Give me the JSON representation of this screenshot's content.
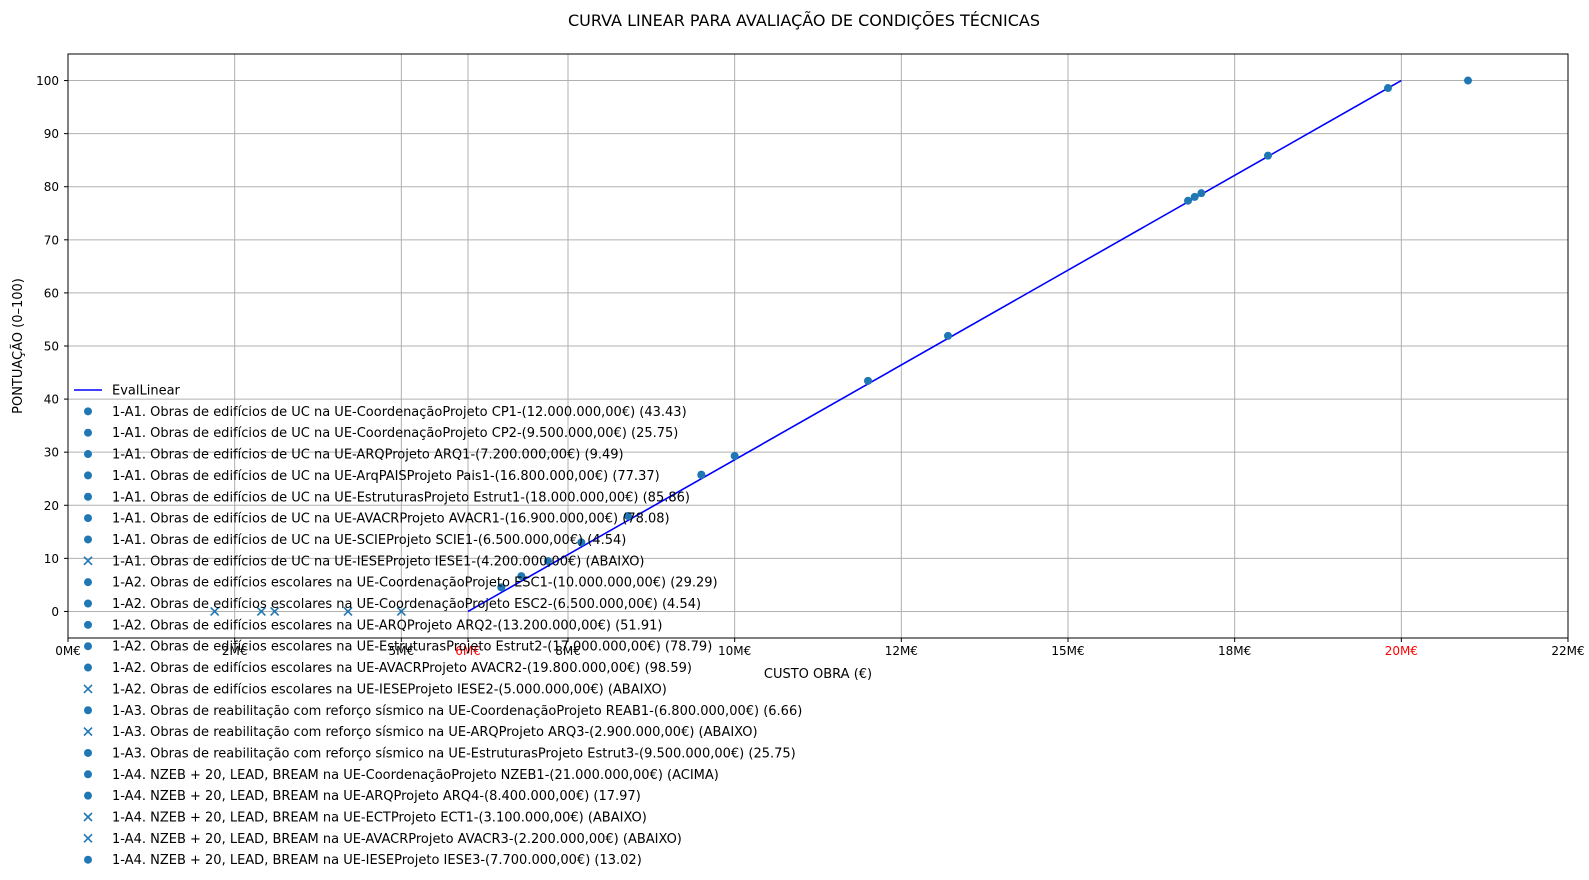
{
  "chart_data": {
    "type": "scatter",
    "title": "CURVA LINEAR PARA AVALIAÇÃO DE CONDIÇÕES TÉCNICAS",
    "xlabel": "CUSTO OBRA (€)",
    "ylabel": "PONTUAÇÃO (0–100)",
    "xlim": [
      0,
      22500000
    ],
    "ylim": [
      -5,
      105
    ],
    "x_ticks": [
      {
        "value": 0,
        "label": "0M€",
        "color": "#000000"
      },
      {
        "value": 2500000,
        "label": "2M€",
        "color": "#000000"
      },
      {
        "value": 5000000,
        "label": "5M€",
        "color": "#000000"
      },
      {
        "value": 6000000,
        "label": "6M€",
        "color": "#ff0000"
      },
      {
        "value": 7500000,
        "label": "8M€",
        "color": "#000000"
      },
      {
        "value": 10000000,
        "label": "10M€",
        "color": "#000000"
      },
      {
        "value": 12500000,
        "label": "12M€",
        "color": "#000000"
      },
      {
        "value": 15000000,
        "label": "15M€",
        "color": "#000000"
      },
      {
        "value": 17500000,
        "label": "18M€",
        "color": "#000000"
      },
      {
        "value": 20000000,
        "label": "20M€",
        "color": "#ff0000"
      },
      {
        "value": 22500000,
        "label": "22M€",
        "color": "#000000"
      }
    ],
    "y_ticks": [
      0,
      10,
      20,
      30,
      40,
      50,
      60,
      70,
      80,
      90,
      100
    ],
    "grid": true,
    "legend_position": "left",
    "line": {
      "name": "EvalLinear",
      "color": "#0000ff",
      "x": [
        6000000,
        20000000
      ],
      "y": [
        0,
        100
      ]
    },
    "marker_color": "#1f77b4",
    "series": [
      {
        "name": "1-A1. Obras de edifícios de UC na UE-CoordenaçãoProjeto CP1-(12.000.000,00€) (43.43)",
        "marker": "circle",
        "x": 12000000,
        "y": 43.43
      },
      {
        "name": "1-A1. Obras de edifícios de UC na UE-CoordenaçãoProjeto CP2-(9.500.000,00€) (25.75)",
        "marker": "circle",
        "x": 9500000,
        "y": 25.75
      },
      {
        "name": "1-A1. Obras de edifícios de UC na UE-ARQProjeto ARQ1-(7.200.000,00€) (9.49)",
        "marker": "circle",
        "x": 7200000,
        "y": 9.49
      },
      {
        "name": "1-A1. Obras de edifícios de UC na UE-ArqPAISProjeto Pais1-(16.800.000,00€) (77.37)",
        "marker": "circle",
        "x": 16800000,
        "y": 77.37
      },
      {
        "name": "1-A1. Obras de edifícios de UC na UE-EstruturasProjeto Estrut1-(18.000.000,00€) (85.86)",
        "marker": "circle",
        "x": 18000000,
        "y": 85.86
      },
      {
        "name": "1-A1. Obras de edifícios de UC na UE-AVACRProjeto AVACR1-(16.900.000,00€) (78.08)",
        "marker": "circle",
        "x": 16900000,
        "y": 78.08
      },
      {
        "name": "1-A1. Obras de edifícios de UC na UE-SCIEProjeto SCIE1-(6.500.000,00€) (4.54)",
        "marker": "circle",
        "x": 6500000,
        "y": 4.54
      },
      {
        "name": "1-A1. Obras de edifícios de UC na UE-IESEProjeto IESE1-(4.200.000,00€) (ABAIXO)",
        "marker": "x",
        "x": 4200000,
        "y": 0
      },
      {
        "name": "1-A2. Obras de edifícios escolares na UE-CoordenaçãoProjeto ESC1-(10.000.000,00€) (29.29)",
        "marker": "circle",
        "x": 10000000,
        "y": 29.29
      },
      {
        "name": "1-A2. Obras de edifícios escolares na UE-CoordenaçãoProjeto ESC2-(6.500.000,00€) (4.54)",
        "marker": "circle",
        "x": 6500000,
        "y": 4.54
      },
      {
        "name": "1-A2. Obras de edifícios escolares na UE-ARQProjeto ARQ2-(13.200.000,00€) (51.91)",
        "marker": "circle",
        "x": 13200000,
        "y": 51.91
      },
      {
        "name": "1-A2. Obras de edifícios escolares na UE-EstruturasProjeto Estrut2-(17.000.000,00€) (78.79)",
        "marker": "circle",
        "x": 17000000,
        "y": 78.79
      },
      {
        "name": "1-A2. Obras de edifícios escolares na UE-AVACRProjeto AVACR2-(19.800.000,00€) (98.59)",
        "marker": "circle",
        "x": 19800000,
        "y": 98.59
      },
      {
        "name": "1-A2. Obras de edifícios escolares na UE-IESEProjeto IESE2-(5.000.000,00€) (ABAIXO)",
        "marker": "x",
        "x": 5000000,
        "y": 0
      },
      {
        "name": "1-A3. Obras de reabilitação com reforço sísmico na UE-CoordenaçãoProjeto REAB1-(6.800.000,00€) (6.66)",
        "marker": "circle",
        "x": 6800000,
        "y": 6.66
      },
      {
        "name": "1-A3. Obras de reabilitação com reforço sísmico na UE-ARQProjeto ARQ3-(2.900.000,00€) (ABAIXO)",
        "marker": "x",
        "x": 2900000,
        "y": 0
      },
      {
        "name": "1-A3. Obras de reabilitação com reforço sísmico na UE-EstruturasProjeto Estrut3-(9.500.000,00€) (25.75)",
        "marker": "circle",
        "x": 9500000,
        "y": 25.75
      },
      {
        "name": "1-A4. NZEB + 20, LEAD, BREAM na UE-CoordenaçãoProjeto NZEB1-(21.000.000,00€) (ACIMA)",
        "marker": "circle",
        "x": 21000000,
        "y": 100
      },
      {
        "name": "1-A4. NZEB + 20, LEAD, BREAM na UE-ARQProjeto ARQ4-(8.400.000,00€) (17.97)",
        "marker": "circle",
        "x": 8400000,
        "y": 17.97
      },
      {
        "name": "1-A4. NZEB + 20, LEAD, BREAM na UE-ECTProjeto ECT1-(3.100.000,00€) (ABAIXO)",
        "marker": "x",
        "x": 3100000,
        "y": 0
      },
      {
        "name": "1-A4. NZEB + 20, LEAD, BREAM na UE-AVACRProjeto AVACR3-(2.200.000,00€) (ABAIXO)",
        "marker": "x",
        "x": 2200000,
        "y": 0
      },
      {
        "name": "1-A4. NZEB + 20, LEAD, BREAM na UE-IESEProjeto IESE3-(7.700.000,00€) (13.02)",
        "marker": "circle",
        "x": 7700000,
        "y": 13.02
      }
    ]
  }
}
